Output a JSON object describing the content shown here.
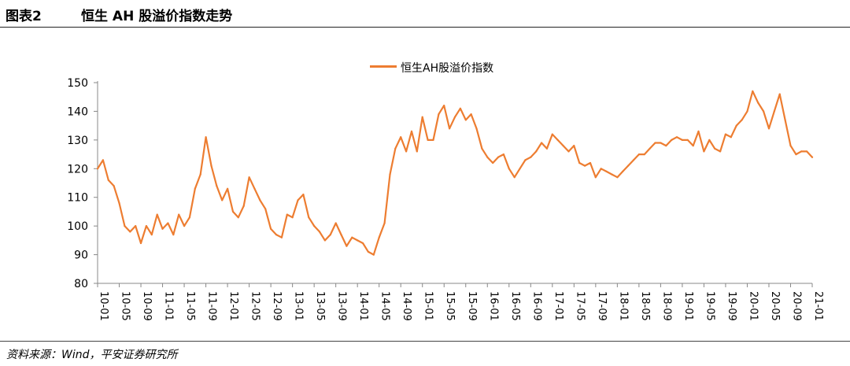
{
  "header": {
    "figure_number": "图表2",
    "title": "恒生 AH 股溢价指数走势"
  },
  "source_note": "资料来源：Wind，平安证券研究所",
  "colors": {
    "series": "#ED7D31",
    "axis": "#888888",
    "text": "#000000"
  },
  "chart_data": {
    "type": "line",
    "title": "",
    "xlabel": "",
    "ylabel": "",
    "ylim": [
      80,
      150
    ],
    "yticks": [
      80,
      90,
      100,
      110,
      120,
      130,
      140,
      150
    ],
    "xlim": [
      "2010-01",
      "2021-01"
    ],
    "xticks": [
      "10-01",
      "10-05",
      "10-09",
      "11-01",
      "11-05",
      "11-09",
      "12-01",
      "12-05",
      "12-09",
      "13-01",
      "13-05",
      "13-09",
      "14-01",
      "14-05",
      "14-09",
      "15-01",
      "15-05",
      "15-09",
      "16-01",
      "16-05",
      "16-09",
      "17-01",
      "17-05",
      "17-09",
      "18-01",
      "18-05",
      "18-09",
      "19-01",
      "19-05",
      "19-09",
      "20-01",
      "20-05",
      "20-09",
      "21-01"
    ],
    "grid": false,
    "legend": "top-center",
    "series": [
      {
        "name": "恒生AH股溢价指数",
        "x": [
          "2010-01",
          "2010-02",
          "2010-03",
          "2010-04",
          "2010-05",
          "2010-06",
          "2010-07",
          "2010-08",
          "2010-09",
          "2010-10",
          "2010-11",
          "2010-12",
          "2011-01",
          "2011-02",
          "2011-03",
          "2011-04",
          "2011-05",
          "2011-06",
          "2011-07",
          "2011-08",
          "2011-09",
          "2011-10",
          "2011-11",
          "2011-12",
          "2012-01",
          "2012-02",
          "2012-03",
          "2012-04",
          "2012-05",
          "2012-06",
          "2012-07",
          "2012-08",
          "2012-09",
          "2012-10",
          "2012-11",
          "2012-12",
          "2013-01",
          "2013-02",
          "2013-03",
          "2013-04",
          "2013-05",
          "2013-06",
          "2013-07",
          "2013-08",
          "2013-09",
          "2013-10",
          "2013-11",
          "2013-12",
          "2014-01",
          "2014-02",
          "2014-03",
          "2014-04",
          "2014-05",
          "2014-06",
          "2014-07",
          "2014-08",
          "2014-09",
          "2014-10",
          "2014-11",
          "2014-12",
          "2015-01",
          "2015-02",
          "2015-03",
          "2015-04",
          "2015-05",
          "2015-06",
          "2015-07",
          "2015-08",
          "2015-09",
          "2015-10",
          "2015-11",
          "2015-12",
          "2016-01",
          "2016-02",
          "2016-03",
          "2016-04",
          "2016-05",
          "2016-06",
          "2016-07",
          "2016-08",
          "2016-09",
          "2016-10",
          "2016-11",
          "2016-12",
          "2017-01",
          "2017-02",
          "2017-03",
          "2017-04",
          "2017-05",
          "2017-06",
          "2017-07",
          "2017-08",
          "2017-09",
          "2017-10",
          "2017-11",
          "2017-12",
          "2018-01",
          "2018-02",
          "2018-03",
          "2018-04",
          "2018-05",
          "2018-06",
          "2018-07",
          "2018-08",
          "2018-09",
          "2018-10",
          "2018-11",
          "2018-12",
          "2019-01",
          "2019-02",
          "2019-03",
          "2019-04",
          "2019-05",
          "2019-06",
          "2019-07",
          "2019-08",
          "2019-09",
          "2019-10",
          "2019-11",
          "2019-12",
          "2020-01",
          "2020-02",
          "2020-03",
          "2020-04",
          "2020-05",
          "2020-06",
          "2020-07",
          "2020-08",
          "2020-09",
          "2020-10",
          "2020-11",
          "2020-12",
          "2021-01"
        ],
        "values": [
          120,
          123,
          116,
          114,
          108,
          100,
          98,
          100,
          94,
          100,
          97,
          104,
          99,
          101,
          97,
          104,
          100,
          103,
          113,
          118,
          131,
          121,
          114,
          109,
          113,
          105,
          103,
          107,
          117,
          113,
          109,
          106,
          99,
          97,
          96,
          104,
          103,
          109,
          111,
          103,
          100,
          98,
          95,
          97,
          101,
          97,
          93,
          96,
          95,
          94,
          91,
          90,
          96,
          101,
          118,
          127,
          131,
          126,
          133,
          126,
          138,
          130,
          130,
          139,
          142,
          134,
          138,
          141,
          137,
          139,
          134,
          127,
          124,
          122,
          124,
          125,
          120,
          117,
          120,
          123,
          124,
          126,
          129,
          127,
          132,
          130,
          128,
          126,
          128,
          122,
          121,
          122,
          117,
          120,
          119,
          118,
          117,
          119,
          121,
          123,
          125,
          125,
          127,
          129,
          129,
          128,
          130,
          131,
          130,
          130,
          128,
          133,
          126,
          130,
          127,
          126,
          132,
          131,
          135,
          137,
          140,
          147,
          143,
          140,
          134,
          140,
          146,
          137,
          128,
          125,
          126,
          126,
          124
        ]
      }
    ]
  }
}
